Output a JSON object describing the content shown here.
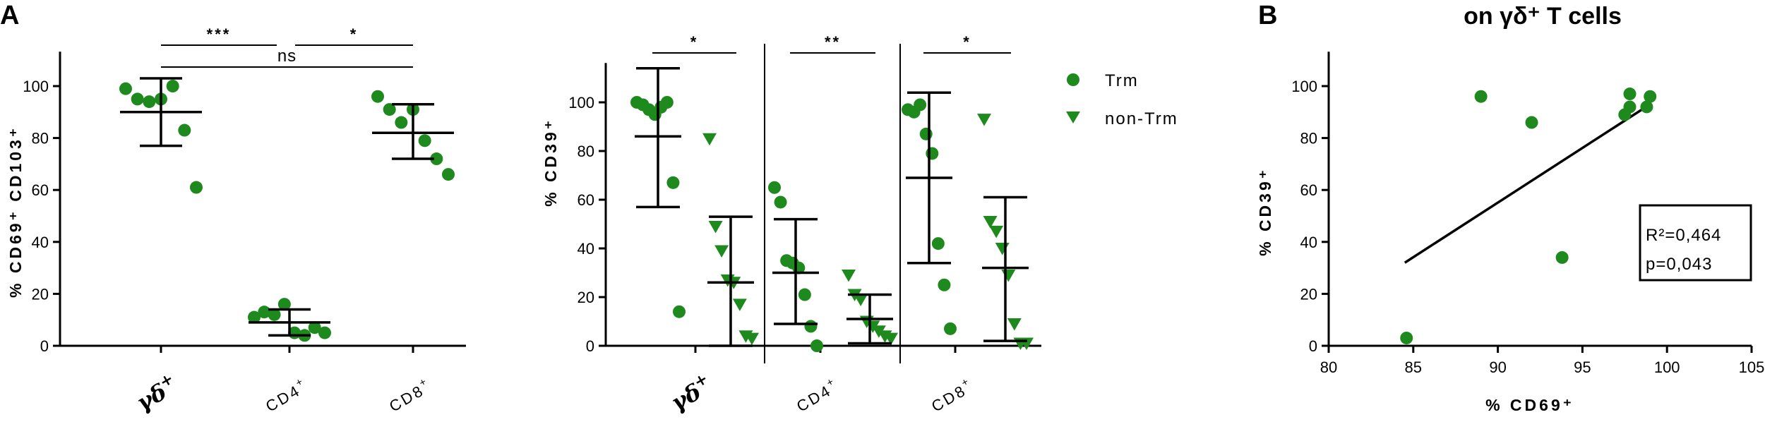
{
  "panel_labels": {
    "a": "A",
    "b": "B"
  },
  "chart_data": [
    {
      "type": "scatter",
      "title": "",
      "ylabel": "% CD69⁺ CD103⁺",
      "ylim": [
        0,
        110
      ],
      "yticks": [
        0,
        20,
        40,
        60,
        80,
        100
      ],
      "categories": [
        "γδ⁺",
        "CD4⁺",
        "CD8⁺"
      ],
      "series": [
        {
          "category": "γδ⁺",
          "points": [
            99,
            95,
            94,
            95,
            100,
            83,
            61
          ],
          "mean": 90,
          "sd": [
            77,
            103
          ],
          "color": "#1e8a1e"
        },
        {
          "category": "CD4⁺",
          "points": [
            11,
            13,
            12,
            16,
            5,
            4,
            7,
            5
          ],
          "mean": 9,
          "sd": [
            4,
            14
          ],
          "color": "#1e8a1e"
        },
        {
          "category": "CD8⁺",
          "points": [
            96,
            91,
            86,
            91,
            79,
            72,
            66
          ],
          "mean": 82,
          "sd": [
            72,
            93
          ],
          "color": "#1e8a1e"
        }
      ],
      "significance": [
        {
          "from": 0,
          "to": 1,
          "label": "***"
        },
        {
          "from": 1,
          "to": 2,
          "label": "*"
        },
        {
          "from": 0,
          "to": 2,
          "label": "ns"
        }
      ]
    },
    {
      "type": "scatter",
      "title": "",
      "ylabel": "% CD39⁺",
      "ylim": [
        0,
        115
      ],
      "yticks": [
        0,
        20,
        40,
        60,
        80,
        100
      ],
      "categories": [
        "γδ⁺",
        "CD4⁺",
        "CD8⁺"
      ],
      "legend": {
        "position": "right",
        "entries": [
          {
            "name": "Trm",
            "marker": "circle"
          },
          {
            "name": "non-Trm",
            "marker": "triangle"
          }
        ]
      },
      "series": [
        {
          "name": "Trm",
          "category": "γδ⁺",
          "points": [
            100,
            99,
            97,
            95,
            98,
            100,
            67,
            14
          ],
          "mean": 86,
          "sd": [
            57,
            114
          ],
          "color": "#1e8a1e"
        },
        {
          "name": "non-Trm",
          "category": "γδ⁺",
          "points": [
            85,
            49,
            39,
            27,
            26,
            17,
            4,
            3
          ],
          "mean": 26,
          "sd": [
            0,
            53
          ],
          "color": "#1e8a1e"
        },
        {
          "name": "Trm",
          "category": "CD4⁺",
          "points": [
            65,
            59,
            35,
            34,
            32,
            21,
            8,
            0
          ],
          "mean": 30,
          "sd": [
            9,
            52
          ],
          "color": "#1e8a1e"
        },
        {
          "name": "non-Trm",
          "category": "CD4⁺",
          "points": [
            29,
            21,
            19,
            10,
            8,
            6,
            4,
            3
          ],
          "mean": 11,
          "sd": [
            1,
            21
          ],
          "color": "#1e8a1e"
        },
        {
          "name": "Trm",
          "category": "CD8⁺",
          "points": [
            97,
            96,
            99,
            87,
            79,
            42,
            25,
            7
          ],
          "mean": 69,
          "sd": [
            34,
            104
          ],
          "color": "#1e8a1e"
        },
        {
          "name": "non-Trm",
          "category": "CD8⁺",
          "points": [
            93,
            51,
            47,
            40,
            29,
            9,
            1,
            1
          ],
          "mean": 32,
          "sd": [
            2,
            61
          ],
          "color": "#1e8a1e"
        }
      ],
      "significance": [
        {
          "category": 0,
          "label": "*"
        },
        {
          "category": 1,
          "label": "**"
        },
        {
          "category": 2,
          "label": "*"
        }
      ]
    },
    {
      "type": "scatter",
      "title": "on γδ⁺ T cells",
      "xlabel": "% CD69⁺",
      "ylabel": "% CD39⁺",
      "xlim": [
        80,
        105
      ],
      "ylim": [
        0,
        110
      ],
      "xticks": [
        80,
        85,
        90,
        95,
        100,
        105
      ],
      "yticks": [
        0,
        20,
        40,
        60,
        80,
        100
      ],
      "points": [
        {
          "x": 84.6,
          "y": 3
        },
        {
          "x": 89,
          "y": 96
        },
        {
          "x": 92,
          "y": 86
        },
        {
          "x": 93.8,
          "y": 34
        },
        {
          "x": 97.5,
          "y": 89
        },
        {
          "x": 97.8,
          "y": 92
        },
        {
          "x": 97.8,
          "y": 97
        },
        {
          "x": 98.8,
          "y": 92
        },
        {
          "x": 99,
          "y": 96
        }
      ],
      "regression": {
        "x": [
          84.5,
          99
        ],
        "y": [
          32,
          93
        ]
      },
      "annotation": {
        "r2": "R²=0,464",
        "p": "p=0,043"
      },
      "color": "#1e8a1e"
    }
  ]
}
